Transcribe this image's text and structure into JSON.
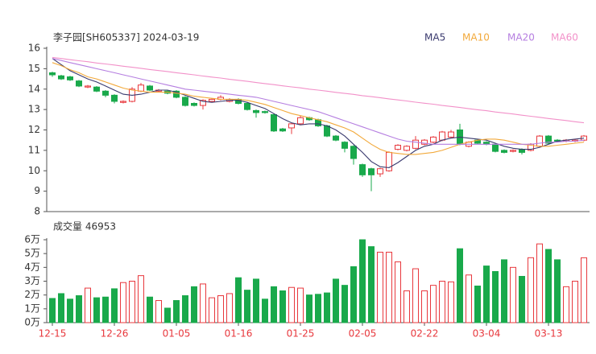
{
  "chart_data": {
    "type": "candlestick",
    "title": "李子园[SH605337] 2024-03-19",
    "categories": [
      "12-15",
      null,
      null,
      null,
      null,
      null,
      null,
      "12-26",
      null,
      null,
      null,
      null,
      null,
      null,
      "01-05",
      null,
      null,
      null,
      null,
      null,
      null,
      "01-16",
      null,
      null,
      null,
      null,
      null,
      null,
      "01-25",
      null,
      null,
      null,
      null,
      null,
      null,
      "02-05",
      null,
      null,
      null,
      null,
      null,
      null,
      "02-22",
      null,
      null,
      null,
      null,
      null,
      null,
      "03-04",
      null,
      null,
      null,
      null,
      null,
      null,
      "03-13",
      null,
      null,
      null,
      null
    ],
    "open": [
      14.8,
      14.65,
      14.6,
      14.4,
      14.1,
      14.1,
      13.9,
      13.7,
      13.35,
      13.4,
      13.9,
      14.15,
      13.9,
      13.9,
      13.9,
      13.6,
      13.3,
      13.2,
      13.4,
      13.5,
      13.4,
      13.5,
      13.3,
      12.95,
      12.9,
      12.75,
      12.05,
      12.1,
      12.3,
      12.6,
      12.5,
      12.2,
      11.7,
      11.4,
      11.2,
      10.3,
      10.1,
      9.85,
      10.0,
      11.05,
      11.0,
      11.1,
      11.3,
      11.4,
      11.5,
      11.65,
      12.0,
      11.2,
      11.5,
      11.4,
      11.3,
      11.0,
      10.95,
      11.05,
      11.0,
      11.2,
      11.7,
      11.5,
      11.45,
      11.45,
      11.5
    ],
    "high": [
      14.85,
      14.7,
      14.65,
      14.45,
      14.2,
      14.15,
      13.95,
      13.75,
      13.45,
      14.1,
      14.3,
      14.2,
      14.0,
      13.95,
      13.95,
      13.65,
      13.35,
      13.5,
      13.55,
      13.7,
      13.55,
      13.55,
      13.35,
      13.0,
      12.95,
      12.8,
      12.1,
      12.35,
      12.7,
      12.65,
      12.55,
      12.25,
      11.75,
      11.45,
      11.25,
      10.35,
      10.15,
      10.15,
      10.95,
      11.3,
      11.25,
      11.7,
      11.55,
      11.7,
      11.95,
      12.0,
      12.3,
      11.45,
      11.55,
      11.45,
      11.35,
      11.05,
      11.05,
      11.1,
      11.35,
      11.75,
      11.75,
      11.55,
      11.55,
      11.55,
      11.75
    ],
    "low": [
      14.6,
      14.45,
      14.4,
      14.1,
      14.05,
      13.85,
      13.6,
      13.3,
      13.3,
      13.35,
      13.85,
      13.9,
      13.85,
      13.75,
      13.55,
      13.15,
      13.15,
      13.0,
      13.35,
      13.45,
      13.35,
      13.25,
      12.95,
      12.6,
      12.8,
      11.9,
      11.9,
      11.8,
      12.25,
      12.45,
      12.15,
      11.65,
      11.45,
      10.9,
      10.3,
      9.7,
      9.0,
      9.7,
      9.95,
      11.0,
      10.95,
      11.05,
      11.25,
      11.35,
      11.45,
      11.6,
      11.25,
      11.15,
      11.3,
      11.25,
      10.9,
      10.85,
      10.9,
      10.8,
      10.95,
      11.15,
      11.3,
      11.4,
      11.4,
      11.4,
      11.45
    ],
    "close": [
      14.7,
      14.5,
      14.45,
      14.15,
      14.15,
      13.9,
      13.7,
      13.4,
      13.4,
      14.0,
      14.2,
      13.95,
      13.95,
      13.8,
      13.6,
      13.2,
      13.2,
      13.45,
      13.5,
      13.6,
      13.5,
      13.3,
      13.0,
      12.85,
      12.85,
      11.95,
      11.95,
      12.3,
      12.6,
      12.5,
      12.2,
      11.7,
      11.5,
      11.1,
      10.6,
      9.8,
      9.8,
      10.1,
      10.9,
      11.25,
      11.2,
      11.5,
      11.5,
      11.65,
      11.9,
      11.9,
      11.3,
      11.4,
      11.35,
      11.3,
      10.95,
      10.9,
      11.0,
      10.9,
      11.3,
      11.7,
      11.35,
      11.45,
      11.5,
      11.5,
      11.7
    ],
    "up_color": "#e8383d",
    "down_color": "#19a94b",
    "ylim": [
      8,
      16
    ],
    "yticks": [
      8,
      9,
      10,
      11,
      12,
      13,
      14,
      15,
      16
    ],
    "ma_series": [
      {
        "name": "MA5",
        "color": "#3a3a6e",
        "values": [
          15.5,
          15.2,
          14.9,
          14.7,
          14.5,
          14.35,
          14.15,
          13.95,
          13.75,
          13.7,
          13.75,
          13.85,
          13.95,
          13.95,
          13.85,
          13.7,
          13.55,
          13.4,
          13.35,
          13.4,
          13.45,
          13.45,
          13.35,
          13.2,
          13.05,
          12.8,
          12.55,
          12.35,
          12.25,
          12.3,
          12.3,
          12.2,
          12.0,
          11.7,
          11.3,
          10.9,
          10.45,
          10.2,
          10.15,
          10.4,
          10.7,
          11.0,
          11.2,
          11.3,
          11.5,
          11.6,
          11.65,
          11.6,
          11.55,
          11.5,
          11.35,
          11.2,
          11.1,
          11.05,
          11.05,
          11.15,
          11.3,
          11.45,
          11.5,
          11.55,
          11.6
        ]
      },
      {
        "name": "MA10",
        "color": "#f2a93b",
        "values": [
          15.3,
          15.15,
          14.95,
          14.8,
          14.6,
          14.5,
          14.35,
          14.2,
          14.05,
          13.95,
          13.9,
          13.85,
          13.85,
          13.85,
          13.8,
          13.75,
          13.65,
          13.6,
          13.55,
          13.5,
          13.5,
          13.5,
          13.45,
          13.35,
          13.25,
          13.1,
          12.95,
          12.8,
          12.7,
          12.6,
          12.5,
          12.4,
          12.25,
          12.1,
          11.9,
          11.6,
          11.3,
          11.05,
          10.9,
          10.85,
          10.8,
          10.8,
          10.85,
          10.9,
          11.0,
          11.15,
          11.3,
          11.4,
          11.5,
          11.55,
          11.55,
          11.5,
          11.4,
          11.3,
          11.25,
          11.2,
          11.2,
          11.25,
          11.3,
          11.35,
          11.4
        ]
      },
      {
        "name": "MA20",
        "color": "#b57ee0",
        "values": [
          15.5,
          15.4,
          15.3,
          15.2,
          15.1,
          15.0,
          14.9,
          14.8,
          14.7,
          14.6,
          14.5,
          14.4,
          14.3,
          14.2,
          14.1,
          14.0,
          13.95,
          13.9,
          13.85,
          13.8,
          13.75,
          13.7,
          13.65,
          13.6,
          13.5,
          13.4,
          13.3,
          13.2,
          13.1,
          13.0,
          12.9,
          12.75,
          12.6,
          12.45,
          12.3,
          12.15,
          12.0,
          11.85,
          11.7,
          11.55,
          11.45,
          11.4,
          11.35,
          11.3,
          11.3,
          11.3,
          11.3,
          11.3,
          11.3,
          11.3,
          11.3,
          11.3,
          11.3,
          11.3,
          11.3,
          11.35,
          11.4,
          11.4,
          11.45,
          11.45,
          11.5
        ]
      },
      {
        "name": "MA60",
        "color": "#f291c9",
        "values": [
          15.55,
          15.5,
          15.44,
          15.39,
          15.34,
          15.28,
          15.23,
          15.18,
          15.12,
          15.07,
          15.02,
          14.96,
          14.91,
          14.86,
          14.8,
          14.75,
          14.7,
          14.64,
          14.59,
          14.54,
          14.48,
          14.43,
          14.38,
          14.32,
          14.27,
          14.22,
          14.16,
          14.11,
          14.06,
          14.0,
          13.95,
          13.9,
          13.84,
          13.79,
          13.74,
          13.68,
          13.63,
          13.58,
          13.52,
          13.47,
          13.42,
          13.36,
          13.31,
          13.26,
          13.2,
          13.15,
          13.1,
          13.04,
          12.99,
          12.94,
          12.88,
          12.83,
          12.78,
          12.72,
          12.67,
          12.62,
          12.56,
          12.51,
          12.46,
          12.4,
          12.35
        ]
      }
    ],
    "volume": {
      "type": "bar",
      "title": "成交量 46953",
      "values": [
        1.75,
        2.1,
        1.7,
        1.95,
        2.5,
        1.8,
        1.85,
        2.45,
        2.9,
        3.0,
        3.4,
        1.85,
        1.6,
        1.05,
        1.6,
        1.95,
        2.6,
        2.8,
        1.8,
        1.95,
        2.1,
        3.25,
        2.35,
        3.15,
        1.7,
        2.6,
        2.3,
        2.55,
        2.5,
        2.0,
        2.05,
        2.15,
        3.15,
        2.7,
        4.05,
        6.0,
        5.5,
        5.1,
        5.1,
        4.4,
        2.3,
        3.9,
        2.3,
        2.7,
        3.0,
        2.95,
        5.35,
        3.45,
        2.65,
        4.1,
        3.7,
        4.55,
        4.0,
        3.35,
        4.7,
        5.7,
        5.3,
        4.55,
        2.6,
        3.0,
        4.6953
      ],
      "ylim": [
        0,
        6
      ],
      "yticks": [
        {
          "value": 0,
          "label": "0万"
        },
        {
          "value": 1,
          "label": "1万"
        },
        {
          "value": 2,
          "label": "2万"
        },
        {
          "value": 3,
          "label": "3万"
        },
        {
          "value": 4,
          "label": "4万"
        },
        {
          "value": 5,
          "label": "5万"
        },
        {
          "value": 6,
          "label": "6万"
        }
      ]
    }
  }
}
